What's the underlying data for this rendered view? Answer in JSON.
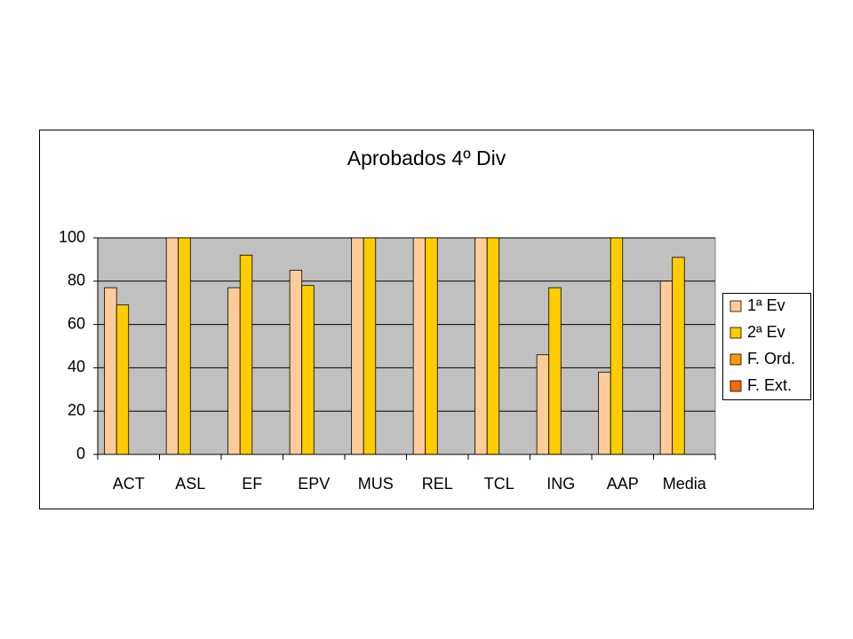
{
  "chart_data": {
    "type": "bar",
    "title": "Aprobados 4º Div",
    "categories": [
      "ACT",
      "ASL",
      "EF",
      "EPV",
      "MUS",
      "REL",
      "TCL",
      "ING",
      "AAP",
      "Media"
    ],
    "series": [
      {
        "name": "1ª Ev",
        "color": "#FFCC99",
        "values": [
          77,
          100,
          77,
          85,
          100,
          100,
          100,
          46,
          38,
          80
        ]
      },
      {
        "name": "2ª Ev",
        "color": "#FFCC00",
        "values": [
          69,
          100,
          92,
          78,
          100,
          100,
          100,
          77,
          100,
          91
        ]
      },
      {
        "name": "F. Ord.",
        "color": "#FF9900",
        "values": [
          null,
          null,
          null,
          null,
          null,
          null,
          null,
          null,
          null,
          null
        ]
      },
      {
        "name": "F. Ext.",
        "color": "#FF6600",
        "values": [
          null,
          null,
          null,
          null,
          null,
          null,
          null,
          null,
          null,
          null
        ]
      }
    ],
    "ylim": [
      0,
      100
    ],
    "yticks": [
      0,
      20,
      40,
      60,
      80,
      100
    ],
    "grid": true,
    "legend": "right"
  }
}
